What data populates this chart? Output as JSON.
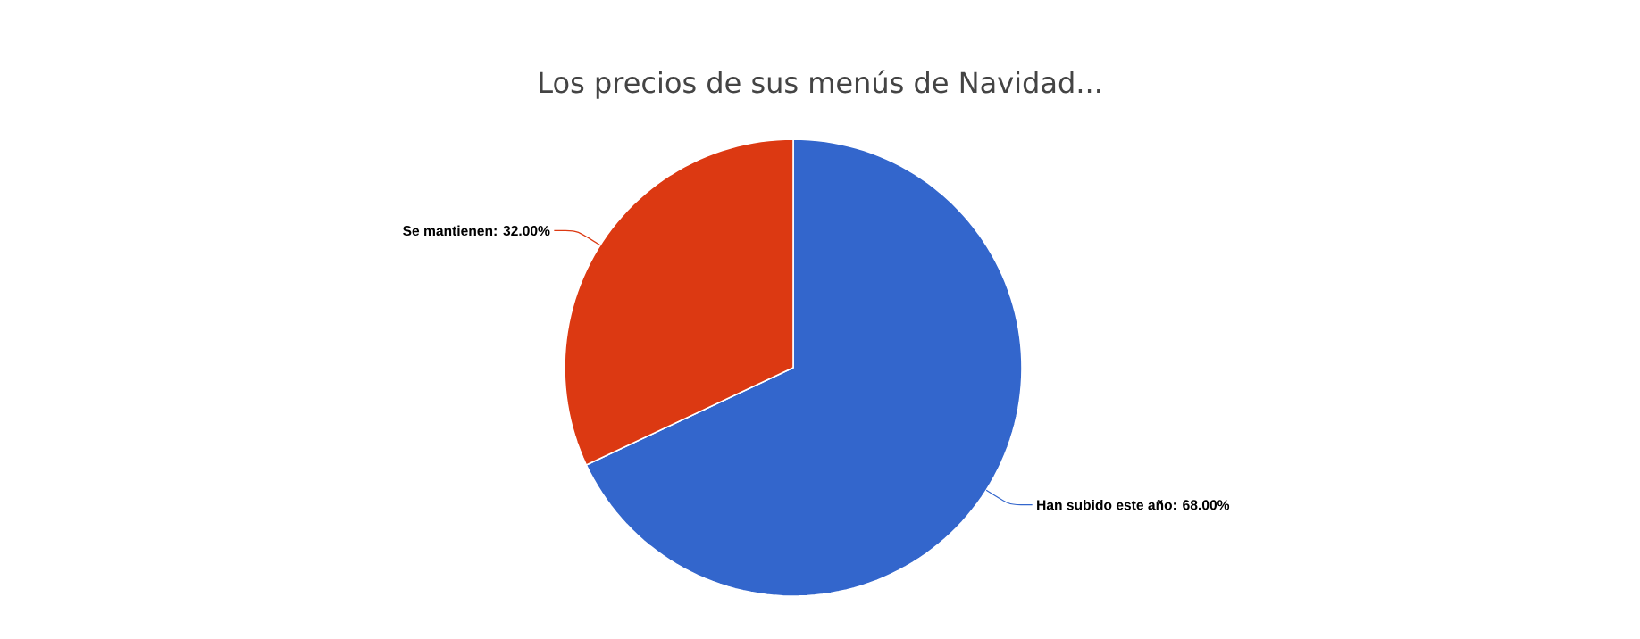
{
  "chart_data": {
    "type": "pie",
    "title": "Los precios de sus menús de Navidad...",
    "categories": [
      "Han subido este año: 68.00%",
      "Se mantienen: 32.00%"
    ],
    "values": [
      68,
      32
    ],
    "colors": [
      "#3366cc",
      "#dc3912"
    ]
  }
}
